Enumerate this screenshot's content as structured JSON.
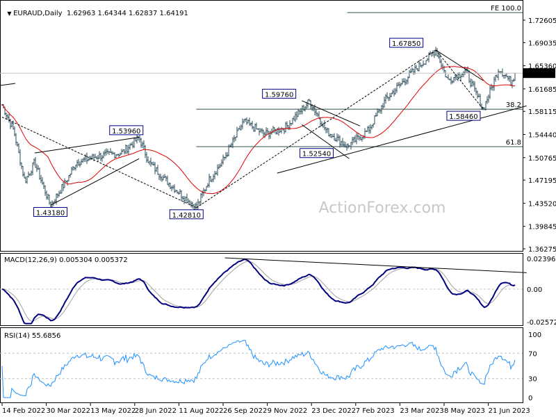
{
  "header": {
    "symbol": "EURAUD,Daily",
    "ohlc": "1.62963 1.64344 1.62837 1.64191"
  },
  "watermark": "ActionForex.com",
  "colors": {
    "bars": "#2b4b5a",
    "ma": "#e00000",
    "macd": "#000080",
    "signal": "#a0a0a0",
    "rsi": "#1e90ff",
    "label_border": "#000080",
    "line": "#2f4f4f"
  },
  "chart_data": [
    {
      "type": "ohlc",
      "title": "EURAUD,Daily",
      "price_ticks": [
        "1.72605",
        "1.69035",
        "1.65360",
        "1.61685",
        "1.58115",
        "1.54440",
        "1.50765",
        "1.47195",
        "1.43520",
        "1.39845",
        "1.36275"
      ],
      "ylim": [
        1.36275,
        1.72605
      ],
      "current_price": "1.64191",
      "x_tick_labels": [
        "14 Feb 2022",
        "30 Mar 2022",
        "13 May 2022",
        "28 Jun 2022",
        "11 Aug 2022",
        "26 Sep 2022",
        "9 Nov 2022",
        "23 Dec 2022",
        "7 Feb 2023",
        "23 Mar 2023",
        "8 May 2023",
        "21 Jun 2023"
      ],
      "approx_close_path": [
        [
          "2022-02-14",
          1.592
        ],
        [
          "2022-02-26",
          1.55
        ],
        [
          "2022-03-09",
          1.47
        ],
        [
          "2022-03-19",
          1.5
        ],
        [
          "2022-04-04",
          1.4318
        ],
        [
          "2022-04-20",
          1.47
        ],
        [
          "2022-04-30",
          1.5
        ],
        [
          "2022-05-22",
          1.51
        ],
        [
          "2022-06-15",
          1.515
        ],
        [
          "2022-07-03",
          1.5396
        ],
        [
          "2022-07-13",
          1.5
        ],
        [
          "2022-07-31",
          1.47
        ],
        [
          "2022-08-14",
          1.45
        ],
        [
          "2022-08-30",
          1.4281
        ],
        [
          "2022-09-11",
          1.47
        ],
        [
          "2022-09-25",
          1.5
        ],
        [
          "2022-10-17",
          1.565
        ],
        [
          "2022-11-07",
          1.545
        ],
        [
          "2022-11-28",
          1.555
        ],
        [
          "2022-12-23",
          1.5976
        ],
        [
          "2023-01-09",
          1.55
        ],
        [
          "2023-01-30",
          1.5254
        ],
        [
          "2023-02-20",
          1.55
        ],
        [
          "2023-03-10",
          1.6
        ],
        [
          "2023-04-04",
          1.64
        ],
        [
          "2023-04-30",
          1.6785
        ],
        [
          "2023-05-12",
          1.63
        ],
        [
          "2023-05-30",
          1.645
        ],
        [
          "2023-06-17",
          1.5846
        ],
        [
          "2023-07-03",
          1.65
        ],
        [
          "2023-07-15",
          1.628
        ],
        [
          "2023-07-20",
          1.64191
        ]
      ],
      "moving_average": "red",
      "annotations": [
        {
          "text": "1.43180",
          "date": "2022-04-04",
          "price": 1.4318,
          "pos": "below"
        },
        {
          "text": "1.53960",
          "date": "2022-06-20",
          "price": 1.5396,
          "pos": "above"
        },
        {
          "text": "1.42810",
          "date": "2022-08-20",
          "price": 1.4281,
          "pos": "below"
        },
        {
          "text": "1.59760",
          "date": "2022-11-22",
          "price": 1.5976,
          "pos": "above"
        },
        {
          "text": "1.52540",
          "date": "2022-12-30",
          "price": 1.5254,
          "pos": "below"
        },
        {
          "text": "1.67850",
          "date": "2023-03-31",
          "price": 1.6785,
          "pos": "above"
        },
        {
          "text": "1.58460",
          "date": "2023-05-28",
          "price": 1.5846,
          "pos": "below"
        }
      ],
      "levels": [
        {
          "text": "FE 100.0",
          "price": 1.7381,
          "from": "2023-01-30"
        },
        {
          "text": "38.2",
          "price": 1.5846,
          "from": "2022-08-30"
        },
        {
          "text": "61.8",
          "price": 1.5251,
          "from": "2022-08-30"
        }
      ],
      "trendlines": [
        [
          [
            "2022-04-04",
            1.4318
          ],
          [
            "2022-07-03",
            1.506
          ]
        ],
        [
          [
            "2022-03-19",
            1.515
          ],
          [
            "2022-07-03",
            1.54
          ]
        ],
        [
          [
            "2022-02-14",
            1.572
          ],
          [
            "2022-08-30",
            1.4281
          ]
        ],
        [
          [
            "2022-08-30",
            1.4281
          ],
          [
            "2023-04-30",
            1.6785
          ]
        ],
        [
          [
            "2022-11-20",
            1.483
          ],
          [
            "2023-07-31",
            1.59
          ]
        ],
        [
          [
            "2022-12-15",
            1.598
          ],
          [
            "2023-02-12",
            1.558
          ]
        ],
        [
          [
            "2022-12-15",
            1.56
          ],
          [
            "2023-02-01",
            1.506
          ]
        ],
        [
          [
            "2023-04-30",
            1.6785
          ],
          [
            "2023-06-17",
            1.63
          ]
        ],
        [
          [
            "2023-04-30",
            1.6785
          ],
          [
            "2023-06-17",
            1.5846
          ]
        ]
      ]
    },
    {
      "type": "line",
      "title": "MACD(12,26,9) 0.005304 0.005372",
      "ticks": [
        "0.023963",
        "0.00",
        "-0.025726"
      ],
      "ylim": [
        -0.025726,
        0.023963
      ],
      "series": [
        {
          "name": "MACD"
        },
        {
          "name": "Signal"
        }
      ],
      "trendline": [
        [
          "2022-09-28",
          0.0245
        ],
        [
          "2023-07-31",
          0.0129
        ]
      ]
    },
    {
      "type": "line",
      "title": "RSI(14) 55.6856",
      "ticks": [
        "100",
        "70",
        "30",
        "0"
      ],
      "ylim": [
        0,
        100
      ],
      "levels": [
        70,
        30
      ]
    }
  ]
}
